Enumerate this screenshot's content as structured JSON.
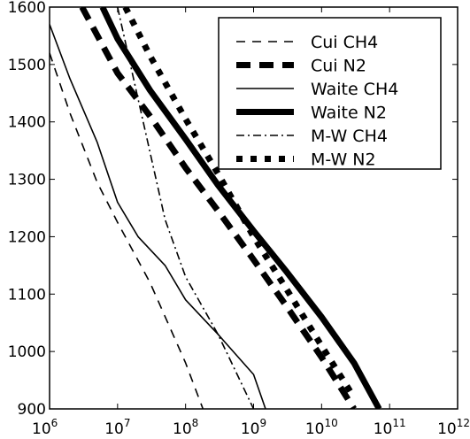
{
  "chart_data": {
    "type": "line",
    "xscale": "log",
    "xlim": [
      1000000,
      1000000000000
    ],
    "ylim": [
      900,
      1600
    ],
    "x_ticks": [
      1000000,
      10000000,
      100000000,
      1000000000,
      10000000000,
      100000000000,
      1000000000000
    ],
    "x_tick_labels": [
      {
        "base": "10",
        "exp": "6"
      },
      {
        "base": "10",
        "exp": "7"
      },
      {
        "base": "10",
        "exp": "8"
      },
      {
        "base": "10",
        "exp": "9"
      },
      {
        "base": "10",
        "exp": "10"
      },
      {
        "base": "10",
        "exp": "11"
      },
      {
        "base": "10",
        "exp": "12"
      }
    ],
    "y_ticks": [
      900,
      1000,
      1100,
      1200,
      1300,
      1400,
      1500,
      1600
    ],
    "y_tick_labels": [
      "900",
      "1000",
      "1100",
      "1200",
      "1300",
      "1400",
      "1500",
      "1600"
    ],
    "grid": false,
    "legend_position": "top-right",
    "series": [
      {
        "name": "Cui CH4",
        "color": "#000000",
        "style": "dashed",
        "weight": "thin",
        "x": [
          1000000,
          2000000,
          5000000,
          10000000,
          30000000,
          100000000,
          180000000
        ],
        "y": [
          1520,
          1415,
          1295,
          1225,
          1120,
          980,
          900
        ]
      },
      {
        "name": "Cui N2",
        "color": "#000000",
        "style": "dashed",
        "weight": "thick",
        "x": [
          3000000,
          10000000,
          30000000,
          100000000,
          300000000,
          1000000000,
          3000000000,
          10000000000,
          30000000000
        ],
        "y": [
          1600,
          1485,
          1410,
          1320,
          1245,
          1160,
          1080,
          990,
          900
        ]
      },
      {
        "name": "Waite CH4",
        "color": "#000000",
        "style": "solid",
        "weight": "thin",
        "x": [
          1000000,
          2000000,
          5000000,
          10000000,
          20000000,
          50000000,
          100000000,
          300000000,
          1000000000,
          1500000000
        ],
        "y": [
          1570,
          1475,
          1365,
          1260,
          1200,
          1150,
          1090,
          1030,
          960,
          900
        ]
      },
      {
        "name": "Waite N2",
        "color": "#000000",
        "style": "solid",
        "weight": "thick",
        "x": [
          6000000,
          10000000,
          30000000,
          100000000,
          300000000,
          1000000000,
          3000000000,
          10000000000,
          30000000000,
          70000000000
        ],
        "y": [
          1600,
          1545,
          1455,
          1370,
          1290,
          1210,
          1140,
          1060,
          980,
          900
        ]
      },
      {
        "name": "M-W CH4",
        "color": "#000000",
        "style": "dashdot",
        "weight": "thin",
        "x": [
          10000000,
          20000000,
          50000000,
          100000000,
          300000000,
          1000000000
        ],
        "y": [
          1600,
          1440,
          1230,
          1130,
          1030,
          900
        ]
      },
      {
        "name": "M-W N2",
        "color": "#000000",
        "style": "dotted",
        "weight": "thick",
        "x": [
          13000000,
          30000000,
          100000000,
          300000000,
          1000000000,
          3000000000,
          10000000000,
          30000000000
        ],
        "y": [
          1600,
          1515,
          1405,
          1310,
          1200,
          1110,
          1010,
          920
        ]
      }
    ]
  }
}
